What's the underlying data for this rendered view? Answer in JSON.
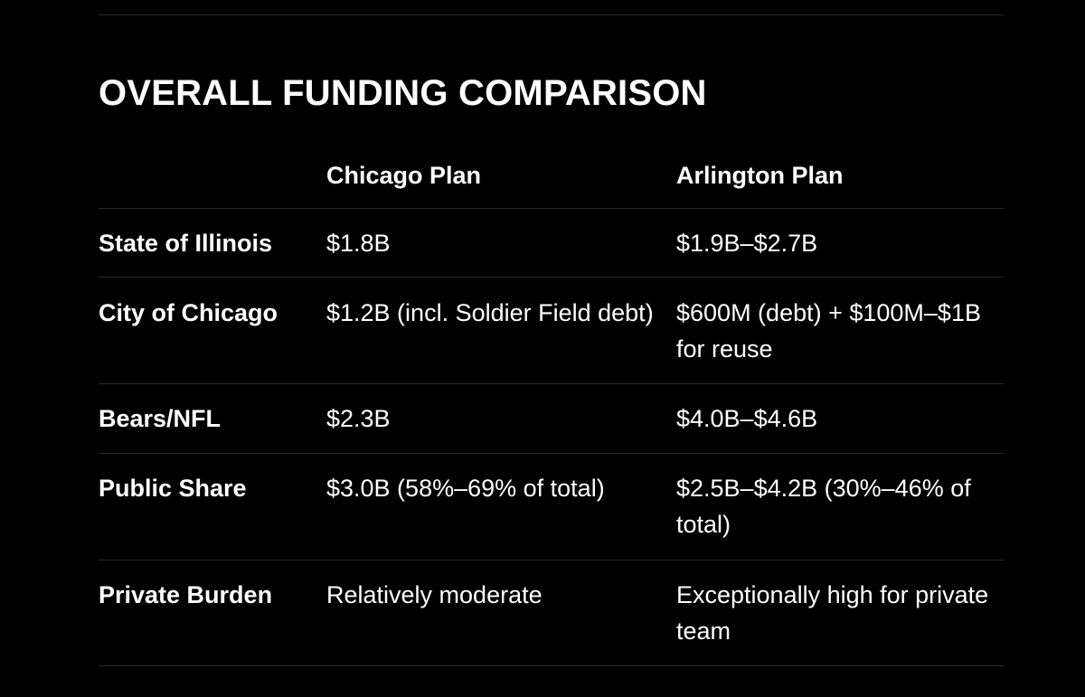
{
  "title": "OVERALL FUNDING COMPARISON",
  "table": {
    "headers": [
      "",
      "Chicago Plan",
      "Arlington Plan"
    ],
    "rows": [
      {
        "label": "State of Illinois",
        "chicago": "$1.8B",
        "arlington": "$1.9B–$2.7B"
      },
      {
        "label": "City of Chicago",
        "chicago": "$1.2B (incl. Soldier Field debt)",
        "arlington": "$600M (debt) + $100M–$1B for reuse"
      },
      {
        "label": "Bears/NFL",
        "chicago": "$2.3B",
        "arlington": "$4.0B–$4.6B"
      },
      {
        "label": "Public Share",
        "chicago": "$3.0B (58%–69% of total)",
        "arlington": "$2.5B–$4.2B (30%–46% of total)"
      },
      {
        "label": "Private Burden",
        "chicago": "Relatively moderate",
        "arlington": "Exceptionally high for private team"
      }
    ]
  }
}
